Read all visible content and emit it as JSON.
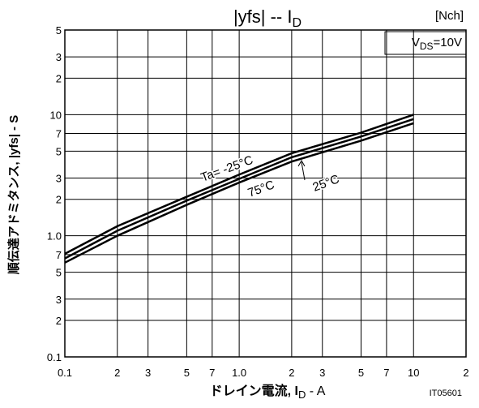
{
  "chart_data": {
    "type": "line",
    "title": "|yfs|  --  I",
    "title_sub": "D",
    "corner_label": "[Nch]",
    "condition": {
      "prefix": "V",
      "sub": "DS",
      "suffix": "=10V"
    },
    "x_label": {
      "text": "ドレイン電流, I",
      "sub": "D",
      "suffix": " - A"
    },
    "y_label": "順伝達アドミタンス, |yfs| - S",
    "figure_id": "IT05601",
    "log_x": true,
    "log_y": true,
    "grid": true,
    "xlim": [
      0.1,
      20
    ],
    "ylim": [
      0.1,
      50
    ],
    "xticks": [
      0.1,
      {
        "value": 0.2,
        "label": "2"
      },
      {
        "value": 0.3,
        "label": "3"
      },
      {
        "value": 0.5,
        "label": "5"
      },
      {
        "value": 0.7,
        "label": "7"
      },
      {
        "value": 1,
        "label": "1.0"
      },
      {
        "value": 2,
        "label": "2"
      },
      {
        "value": 3,
        "label": "3"
      },
      {
        "value": 5,
        "label": "5"
      },
      {
        "value": 7,
        "label": "7"
      },
      10,
      {
        "value": 20,
        "label": "2"
      }
    ],
    "yticks": [
      0.1,
      {
        "value": 0.2,
        "label": "2"
      },
      {
        "value": 0.3,
        "label": "3"
      },
      {
        "value": 0.5,
        "label": "5"
      },
      {
        "value": 0.7,
        "label": "7"
      },
      {
        "value": 1,
        "label": "1.0"
      },
      2,
      3,
      5,
      7,
      10,
      {
        "value": 20,
        "label": "2"
      },
      {
        "value": 30,
        "label": "3"
      },
      {
        "value": 50,
        "label": "5"
      }
    ],
    "x": [
      0.1,
      0.2,
      0.5,
      1,
      2,
      5,
      10
    ],
    "series": [
      {
        "name": "Ta= -25°C",
        "color": "#000000",
        "values": [
          0.71,
          1.2,
          2.1,
          3.2,
          4.8,
          7.1,
          10
        ]
      },
      {
        "name": "25°C",
        "color": "#000000",
        "values": [
          0.65,
          1.1,
          1.95,
          2.95,
          4.45,
          6.6,
          9.2
        ]
      },
      {
        "name": "75°C",
        "color": "#000000",
        "values": [
          0.6,
          1.0,
          1.8,
          2.75,
          4.1,
          6.1,
          8.5
        ]
      }
    ]
  }
}
